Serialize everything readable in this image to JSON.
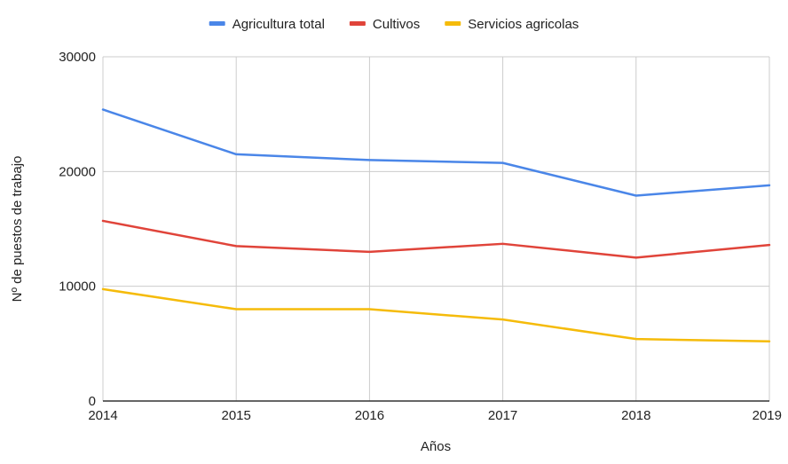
{
  "chart_data": {
    "type": "line",
    "categories": [
      "2014",
      "2015",
      "2016",
      "2017",
      "2018",
      "2019"
    ],
    "series": [
      {
        "name": "Agricultura total",
        "color": "#4a86e8",
        "values": [
          25400,
          21500,
          21000,
          20750,
          17900,
          18800
        ]
      },
      {
        "name": "Cultivos",
        "color": "#e0443a",
        "values": [
          15700,
          13500,
          13000,
          13700,
          12500,
          13600
        ]
      },
      {
        "name": "Servicios agricolas",
        "color": "#f5bb0a",
        "values": [
          9750,
          8000,
          8000,
          7100,
          5400,
          5200
        ]
      }
    ],
    "xlabel": "Años",
    "ylabel": "Nº de puestos de trabajo",
    "ylim": [
      0,
      30000
    ],
    "yticks": [
      "0",
      "10000",
      "20000",
      "30000"
    ],
    "grid": true,
    "legend_position": "top"
  }
}
